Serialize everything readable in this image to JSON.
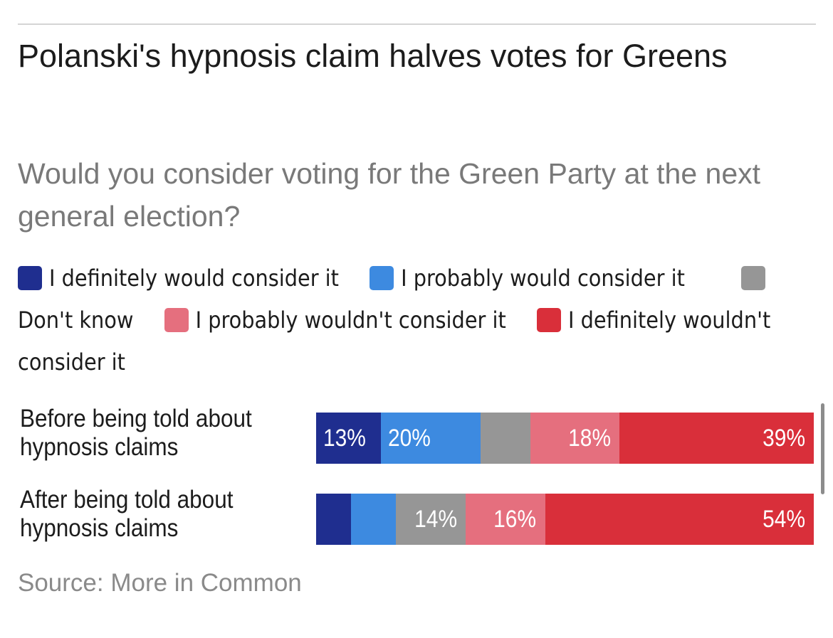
{
  "title": "Polanski's hypnosis claim halves votes for Greens",
  "subtitle": "Would you consider voting for the Green Party at the next general election?",
  "source": "Source: More in Common",
  "colors": {
    "definitely_would": "#1f2e8f",
    "probably_would": "#3d8ae0",
    "dont_know": "#969696",
    "probably_wouldnt": "#e56f7e",
    "definitely_wouldnt": "#d92f3a"
  },
  "chart_data": {
    "type": "bar",
    "orientation": "horizontal",
    "stacked": true,
    "normalized": true,
    "categories": [
      "Before being told about hypnosis claims",
      "After being told about hypnosis claims"
    ],
    "series": [
      {
        "name": "I definitely would consider it",
        "color": "#1f2e8f",
        "values": [
          13,
          7
        ],
        "labels": [
          "13%",
          ""
        ],
        "label_align": "left"
      },
      {
        "name": "I probably would consider it",
        "color": "#3d8ae0",
        "values": [
          20,
          9
        ],
        "labels": [
          "20%",
          ""
        ],
        "label_align": "left"
      },
      {
        "name": "Don't know",
        "color": "#969696",
        "values": [
          10,
          14
        ],
        "labels": [
          "",
          "14%"
        ],
        "label_align": "right"
      },
      {
        "name": "I probably wouldn't consider it",
        "color": "#e56f7e",
        "values": [
          18,
          16
        ],
        "labels": [
          "18%",
          "16%"
        ],
        "label_align": "right"
      },
      {
        "name": "I definitely wouldn't consider it",
        "color": "#d92f3a",
        "values": [
          39,
          54
        ],
        "labels": [
          "39%",
          "54%"
        ],
        "label_align": "right"
      }
    ],
    "legend_position": "top",
    "grid": false
  }
}
